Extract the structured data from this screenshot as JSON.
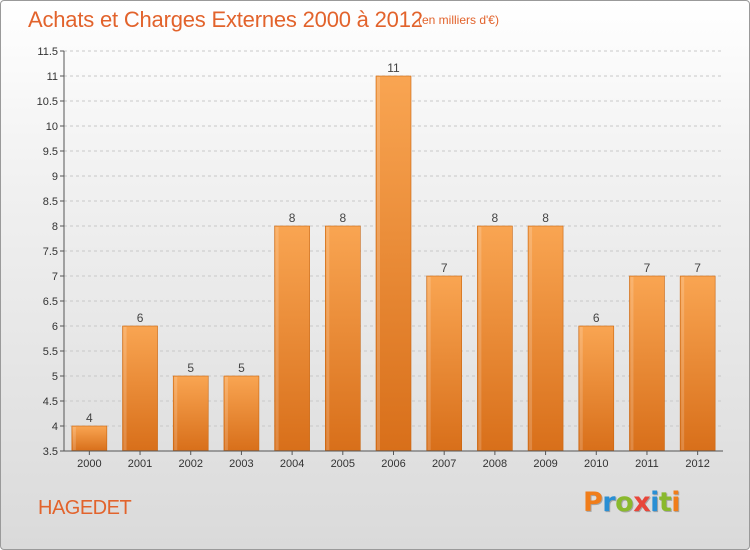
{
  "chart_data": {
    "type": "bar",
    "title": "Achats et Charges Externes 2000 à 2012",
    "subtitle": "(en milliers d'€)",
    "xlabel": "",
    "ylabel": "",
    "categories": [
      "2000",
      "2001",
      "2002",
      "2003",
      "2004",
      "2005",
      "2006",
      "2007",
      "2008",
      "2009",
      "2010",
      "2011",
      "2012"
    ],
    "values": [
      4,
      6,
      5,
      5,
      8,
      8,
      11,
      7,
      8,
      8,
      6,
      7,
      7
    ],
    "value_labels": [
      "4",
      "6",
      "5",
      "5",
      "8",
      "8",
      "11",
      "7",
      "8",
      "8",
      "6",
      "7",
      "7"
    ],
    "ylim": [
      3.5,
      11.5
    ],
    "yticks": [
      3.5,
      4,
      4.5,
      5,
      5.5,
      6,
      6.5,
      7,
      7.5,
      8,
      8.5,
      9,
      9.5,
      10,
      10.5,
      11,
      11.5
    ],
    "ytick_labels": [
      "3.5",
      "4",
      "4.5",
      "5",
      "5.5",
      "6",
      "6.5",
      "7",
      "7.5",
      "8",
      "8.5",
      "9",
      "9.5",
      "10",
      "10.5",
      "11",
      "11.5"
    ],
    "grid": true,
    "legend": "none",
    "colors": {
      "bar_light": "#f9a552",
      "bar_dark": "#d86f1a",
      "bar_edge": "#c9650f",
      "title": "#e2632c"
    }
  },
  "place_name": "HAGEDET",
  "logo": {
    "letters": [
      "P",
      "r",
      "o",
      "x",
      "i",
      "t",
      "i"
    ],
    "colors": [
      "#f07d1a",
      "#2a8fd4",
      "#8ab92d",
      "#e8463a",
      "#2a8fd4",
      "#8ab92d",
      "#f07d1a"
    ]
  }
}
